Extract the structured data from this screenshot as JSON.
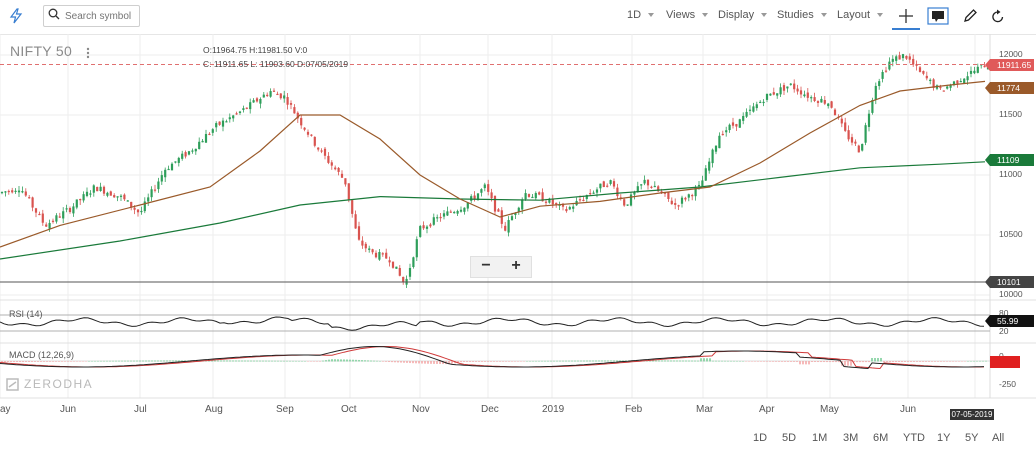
{
  "toolbar": {
    "search_placeholder": "Search symbol",
    "interval": "1D",
    "views": "Views",
    "display": "Display",
    "studies": "Studies",
    "layout": "Layout"
  },
  "chart": {
    "title": "NIFTY 50",
    "ohlc_line1": "O:11964.75  H:11981.50  V:0",
    "ohlc_line2": "C: 11911.65  L: 11903.60  D:07/05/2019",
    "price_labels": {
      "current": "11911.65",
      "ma_short": "11774",
      "ma_long": "11109",
      "line": "10101"
    },
    "price_ticks": [
      "12000",
      "11500",
      "11000",
      "10500",
      "10000"
    ],
    "months": [
      "ay",
      "Jun",
      "Jul",
      "Aug",
      "Sep",
      "Oct",
      "Nov",
      "Dec",
      "2019",
      "Feb",
      "Mar",
      "Apr",
      "May",
      "Jun"
    ],
    "rsi_label": "RSI (14)",
    "rsi_value": "55.99",
    "rsi_ticks": [
      "80",
      "20"
    ],
    "macd_label": "MACD (12,26,9)",
    "macd_ticks": [
      "0",
      "-250"
    ],
    "watermark": "ZERODHA",
    "date_tip": "07-05-2019"
  },
  "ranges": [
    "1D",
    "5D",
    "1M",
    "3M",
    "6M",
    "YTD",
    "1Y",
    "5Y",
    "All"
  ],
  "colors": {
    "current": "#e05a5a",
    "ma_short": "#9a5a2a",
    "ma_long": "#1a7a3a",
    "line": "#444444",
    "up": "#2e9e5a",
    "down": "#d9534f",
    "accent": "#387ed1"
  }
}
